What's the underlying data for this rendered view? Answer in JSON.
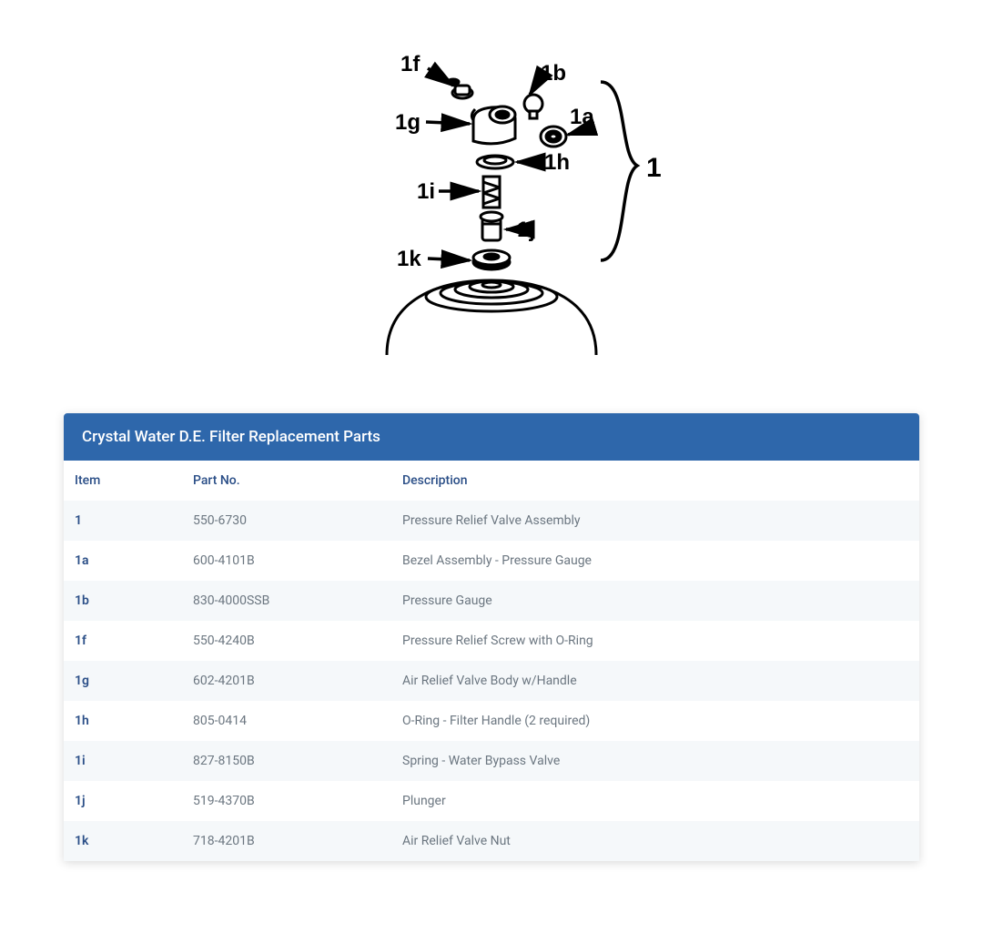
{
  "diagram": {
    "labels": {
      "f": "1f",
      "b": "1b",
      "a": "1a",
      "g": "1g",
      "h": "1h",
      "i": "1i",
      "j": "1j",
      "k": "1k",
      "group": "1"
    },
    "colors": {
      "stroke": "#000000",
      "fill_bg": "#ffffff"
    }
  },
  "table": {
    "title": "Crystal Water D.E. Filter Replacement Parts",
    "header_bg": "#2e67ab",
    "header_fg": "#ffffff",
    "row_odd_bg": "#f5f8fa",
    "row_even_bg": "#ffffff",
    "item_color": "#2a4e87",
    "text_color": "#6b7680",
    "columns": [
      "Item",
      "Part No.",
      "Description"
    ],
    "rows": [
      {
        "item": "1",
        "part": "550-6730",
        "desc": "Pressure Relief Valve Assembly"
      },
      {
        "item": "1a",
        "part": "600-4101B",
        "desc": "Bezel Assembly - Pressure Gauge"
      },
      {
        "item": "1b",
        "part": "830-4000SSB",
        "desc": "Pressure Gauge"
      },
      {
        "item": "1f",
        "part": "550-4240B",
        "desc": "Pressure Relief Screw with O-Ring"
      },
      {
        "item": "1g",
        "part": "602-4201B",
        "desc": "Air Relief Valve Body w/Handle"
      },
      {
        "item": "1h",
        "part": "805-0414",
        "desc": "O-Ring - Filter Handle (2 required)"
      },
      {
        "item": "1i",
        "part": "827-8150B",
        "desc": "Spring - Water Bypass Valve"
      },
      {
        "item": "1j",
        "part": "519-4370B",
        "desc": "Plunger"
      },
      {
        "item": "1k",
        "part": "718-4201B",
        "desc": "Air Relief Valve Nut"
      }
    ]
  }
}
